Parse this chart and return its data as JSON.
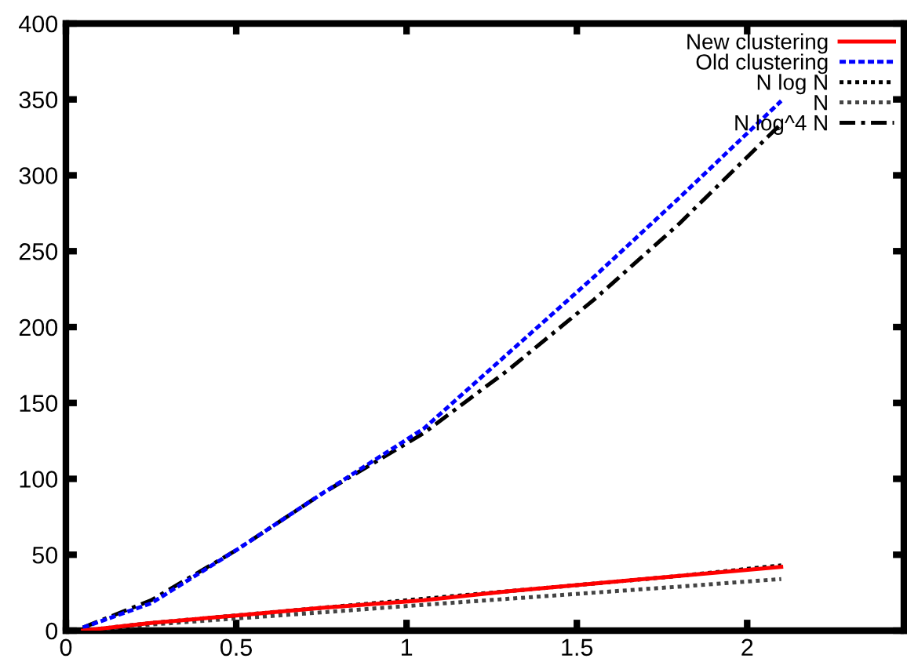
{
  "chart_data": {
    "type": "line",
    "x": [
      0.05,
      0.25,
      0.5,
      0.75,
      1.05,
      1.3,
      1.55,
      1.8,
      2.1
    ],
    "series": [
      {
        "name": "New clustering",
        "color": "#ff0000",
        "line_style": "solid",
        "values": [
          0,
          5,
          10,
          15,
          20,
          26,
          31,
          36,
          42
        ]
      },
      {
        "name": "Old clustering",
        "color": "#0000ff",
        "line_style": "dashed",
        "values": [
          2,
          18,
          53,
          90,
          133,
          183,
          233,
          285,
          349
        ]
      },
      {
        "name": "N log N",
        "color": "#000000",
        "line_style": "dotted",
        "values": [
          0,
          5,
          10,
          15,
          21,
          26,
          31,
          36,
          43
        ]
      },
      {
        "name": "N",
        "color": "#444444",
        "line_style": "dotted",
        "values": [
          0,
          4,
          8,
          12,
          17,
          21,
          25,
          29,
          34
        ]
      },
      {
        "name": "N log^4 N",
        "color": "#000000",
        "line_style": "dashdot",
        "values": [
          2,
          20,
          53,
          90,
          130,
          172,
          218,
          268,
          334
        ]
      }
    ],
    "xlim": [
      0,
      2.46
    ],
    "xticks": [
      0,
      0.5,
      1,
      1.5,
      2
    ],
    "ylim": [
      0,
      400
    ],
    "yticks": [
      0,
      50,
      100,
      150,
      200,
      250,
      300,
      350,
      400
    ],
    "grid": false,
    "legend": "top right"
  }
}
